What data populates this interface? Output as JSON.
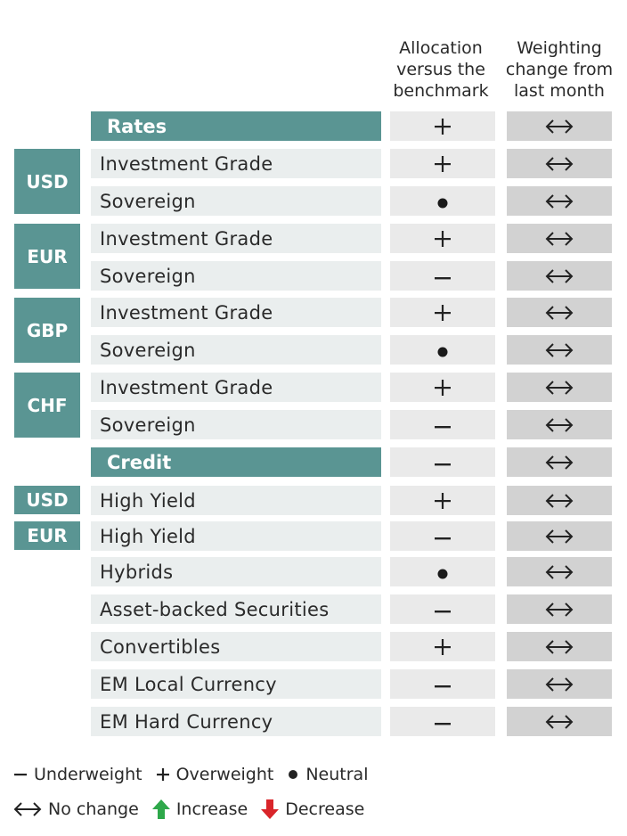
{
  "headers": {
    "allocation": [
      "Allocation",
      "versus the",
      "benchmark"
    ],
    "weighting": [
      "Weighting",
      "change from",
      "last month"
    ]
  },
  "sections": {
    "rates": "Rates",
    "credit": "Credit"
  },
  "currencies": {
    "rates_usd": "USD",
    "rates_eur": "EUR",
    "rates_gbp": "GBP",
    "rates_chf": "CHF",
    "credit_usd": "USD",
    "credit_eur": "EUR"
  },
  "rows": [
    {
      "label": "Rates",
      "allocation": "overweight",
      "change": "no-change"
    },
    {
      "label": "Investment Grade",
      "allocation": "overweight",
      "change": "no-change"
    },
    {
      "label": "Sovereign",
      "allocation": "neutral",
      "change": "no-change"
    },
    {
      "label": "Investment Grade",
      "allocation": "overweight",
      "change": "no-change"
    },
    {
      "label": "Sovereign",
      "allocation": "underweight",
      "change": "no-change"
    },
    {
      "label": "Investment Grade",
      "allocation": "overweight",
      "change": "no-change"
    },
    {
      "label": "Sovereign",
      "allocation": "neutral",
      "change": "no-change"
    },
    {
      "label": "Investment Grade",
      "allocation": "overweight",
      "change": "no-change"
    },
    {
      "label": "Sovereign",
      "allocation": "underweight",
      "change": "no-change"
    },
    {
      "label": "Credit",
      "allocation": "underweight",
      "change": "no-change"
    },
    {
      "label": "High Yield",
      "allocation": "overweight",
      "change": "no-change"
    },
    {
      "label": "High Yield",
      "allocation": "underweight",
      "change": "no-change"
    },
    {
      "label": "Hybrids",
      "allocation": "neutral",
      "change": "no-change"
    },
    {
      "label": "Asset-backed Securities",
      "allocation": "underweight",
      "change": "no-change"
    },
    {
      "label": "Convertibles",
      "allocation": "overweight",
      "change": "no-change"
    },
    {
      "label": "EM Local Currency",
      "allocation": "underweight",
      "change": "no-change"
    },
    {
      "label": "EM Hard Currency",
      "allocation": "underweight",
      "change": "no-change"
    }
  ],
  "legend": {
    "underweight": "Underweight",
    "overweight": "Overweight",
    "neutral": "Neutral",
    "no_change": "No change",
    "increase": "Increase",
    "decrease": "Decrease"
  },
  "colors": {
    "teal": "#5a9593",
    "increase_green": "#2ea84a",
    "decrease_red": "#d9252a"
  }
}
